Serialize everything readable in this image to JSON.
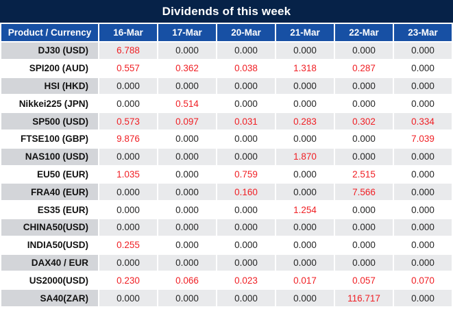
{
  "title": "Dividends of this week",
  "table": {
    "product_header": "Product / Currency",
    "date_headers": [
      "16-Mar",
      "17-Mar",
      "20-Mar",
      "21-Mar",
      "22-Mar",
      "23-Mar"
    ],
    "rows": [
      {
        "product": "DJ30 (USD)",
        "values": [
          "6.788",
          "0.000",
          "0.000",
          "0.000",
          "0.000",
          "0.000"
        ]
      },
      {
        "product": "SPI200 (AUD)",
        "values": [
          "0.557",
          "0.362",
          "0.038",
          "1.318",
          "0.287",
          "0.000"
        ]
      },
      {
        "product": "HSI (HKD)",
        "values": [
          "0.000",
          "0.000",
          "0.000",
          "0.000",
          "0.000",
          "0.000"
        ]
      },
      {
        "product": "Nikkei225 (JPN)",
        "values": [
          "0.000",
          "0.514",
          "0.000",
          "0.000",
          "0.000",
          "0.000"
        ]
      },
      {
        "product": "SP500 (USD)",
        "values": [
          "0.573",
          "0.097",
          "0.031",
          "0.283",
          "0.302",
          "0.334"
        ]
      },
      {
        "product": "FTSE100 (GBP)",
        "values": [
          "9.876",
          "0.000",
          "0.000",
          "0.000",
          "0.000",
          "7.039"
        ]
      },
      {
        "product": "NAS100 (USD)",
        "values": [
          "0.000",
          "0.000",
          "0.000",
          "1.870",
          "0.000",
          "0.000"
        ]
      },
      {
        "product": "EU50 (EUR)",
        "values": [
          "1.035",
          "0.000",
          "0.759",
          "0.000",
          "2.515",
          "0.000"
        ]
      },
      {
        "product": "FRA40 (EUR)",
        "values": [
          "0.000",
          "0.000",
          "0.160",
          "0.000",
          "7.566",
          "0.000"
        ]
      },
      {
        "product": "ES35 (EUR)",
        "values": [
          "0.000",
          "0.000",
          "0.000",
          "1.254",
          "0.000",
          "0.000"
        ]
      },
      {
        "product": "CHINA50(USD)",
        "values": [
          "0.000",
          "0.000",
          "0.000",
          "0.000",
          "0.000",
          "0.000"
        ]
      },
      {
        "product": "INDIA50(USD)",
        "values": [
          "0.255",
          "0.000",
          "0.000",
          "0.000",
          "0.000",
          "0.000"
        ]
      },
      {
        "product": "DAX40 / EUR",
        "values": [
          "0.000",
          "0.000",
          "0.000",
          "0.000",
          "0.000",
          "0.000"
        ]
      },
      {
        "product": "US2000(USD)",
        "values": [
          "0.230",
          "0.066",
          "0.023",
          "0.017",
          "0.057",
          "0.070"
        ]
      },
      {
        "product": "SA40(ZAR)",
        "values": [
          "0.000",
          "0.000",
          "0.000",
          "0.000",
          "116.717",
          "0.000"
        ]
      }
    ]
  },
  "colors": {
    "title_bar": "#062248",
    "header_bar": "#1750a4",
    "row_product_gray": "#d3d5d9",
    "row_value_gray": "#e9eaec",
    "nonzero_value_red": "#f01e23",
    "zero_value_text": "#242424"
  }
}
